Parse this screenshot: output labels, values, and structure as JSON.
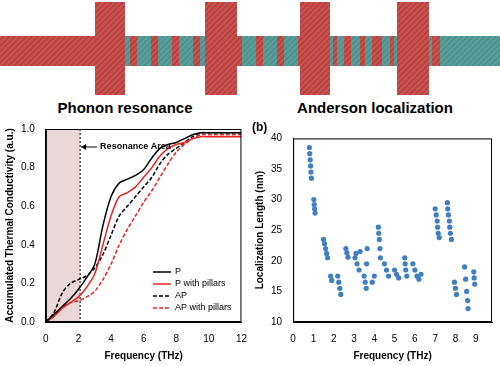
{
  "header": {
    "labels": [
      "Phonon resonance",
      "Anderson localization"
    ]
  },
  "chart_data": [
    {
      "type": "line",
      "x_label": "Frequency (THz)",
      "y_label": "Accumulated Thermal Conductivity (a.u.)",
      "x": [
        0,
        0.5,
        1,
        1.5,
        2,
        2.5,
        3,
        3.5,
        4,
        4.5,
        5,
        5.5,
        6,
        6.5,
        7,
        7.5,
        8,
        8.5,
        9,
        9.5,
        10,
        10.5,
        11,
        11.5,
        12
      ],
      "series": [
        {
          "name": "P",
          "color": "#000000",
          "line_style": "solid",
          "values": [
            0,
            0.04,
            0.08,
            0.12,
            0.17,
            0.23,
            0.3,
            0.5,
            0.65,
            0.72,
            0.74,
            0.76,
            0.79,
            0.85,
            0.9,
            0.92,
            0.93,
            0.95,
            0.97,
            0.98,
            0.98,
            0.98,
            0.98,
            0.98,
            0.98
          ]
        },
        {
          "name": "P with pillars",
          "color": "#e8231f",
          "line_style": "solid",
          "values": [
            0,
            0.03,
            0.07,
            0.1,
            0.13,
            0.18,
            0.25,
            0.4,
            0.55,
            0.65,
            0.67,
            0.7,
            0.75,
            0.8,
            0.86,
            0.9,
            0.92,
            0.93,
            0.95,
            0.96,
            0.96,
            0.96,
            0.96,
            0.96,
            0.96
          ]
        },
        {
          "name": "AP",
          "color": "#000000",
          "line_style": "dashed",
          "values": [
            0,
            0.05,
            0.15,
            0.2,
            0.22,
            0.24,
            0.28,
            0.35,
            0.45,
            0.55,
            0.6,
            0.65,
            0.7,
            0.75,
            0.82,
            0.87,
            0.9,
            0.93,
            0.96,
            0.98,
            0.98,
            0.98,
            0.98,
            0.98,
            0.98
          ]
        },
        {
          "name": "AP with pillars",
          "color": "#e8231f",
          "line_style": "dashed",
          "values": [
            0,
            0.03,
            0.08,
            0.1,
            0.11,
            0.13,
            0.16,
            0.22,
            0.3,
            0.4,
            0.48,
            0.55,
            0.62,
            0.68,
            0.75,
            0.82,
            0.88,
            0.92,
            0.95,
            0.97,
            0.97,
            0.97,
            0.97,
            0.97,
            0.97
          ]
        }
      ],
      "xlim": [
        0,
        12
      ],
      "xticks": [
        0,
        2,
        4,
        6,
        8,
        10,
        12
      ],
      "ylim": [
        0,
        1
      ],
      "yticks": [
        {
          "value": 0,
          "label": "0.0"
        },
        0.2,
        0.4,
        0.6,
        0.8,
        {
          "value": 1,
          "label": "1.0"
        }
      ],
      "annotations": [
        {
          "text": "Resonance Area",
          "x_range": [
            0,
            2.1
          ]
        }
      ],
      "legend": "lower right",
      "grid": false
    },
    {
      "type": "scatter",
      "title": "(b)",
      "x_label": "Frequency (THz)",
      "y_label": "Localization Length (nm)",
      "color": "#3f7fc2",
      "x": [
        0.8,
        0.82,
        0.84,
        0.86,
        0.88,
        0.9,
        1.02,
        1.04,
        1.06,
        1.08,
        1.5,
        1.55,
        1.6,
        1.65,
        1.7,
        1.85,
        1.9,
        2.2,
        2.25,
        2.3,
        2.35,
        2.6,
        2.65,
        2.7,
        3.05,
        3.1,
        3.15,
        3.25,
        3.3,
        3.5,
        3.55,
        3.6,
        3.62,
        3.65,
        3.9,
        4.0,
        4.2,
        4.22,
        4.25,
        4.28,
        4.3,
        4.5,
        4.6,
        4.7,
        5.0,
        5.1,
        5.2,
        5.5,
        5.52,
        5.55,
        5.6,
        5.9,
        6.0,
        6.1,
        6.2,
        6.3,
        7.0,
        7.05,
        7.1,
        7.12,
        7.15,
        7.2,
        7.6,
        7.62,
        7.65,
        7.7,
        7.72,
        7.75,
        7.8,
        7.95,
        8.0,
        8.05,
        8.45,
        8.5,
        8.55,
        8.6,
        8.62,
        8.9,
        8.92,
        8.95
      ],
      "values": [
        38.5,
        37.5,
        36.5,
        35.5,
        34.5,
        33.5,
        30,
        29.2,
        28.5,
        27.8,
        23.5,
        22.8,
        22,
        21.2,
        20.5,
        17.5,
        16.8,
        17.5,
        16.5,
        15.5,
        14.5,
        22,
        21.3,
        20.6,
        20.5,
        21.2,
        19.5,
        18.5,
        21.5,
        17.5,
        16.5,
        15.5,
        19.5,
        22,
        16.5,
        17.5,
        25.5,
        24.5,
        23.5,
        22,
        20.5,
        19.5,
        18.5,
        17.5,
        18.5,
        17.8,
        17.2,
        20.5,
        19.5,
        18.5,
        17.5,
        19.5,
        18.5,
        17.5,
        17,
        17.8,
        28.5,
        27.5,
        26.5,
        25.5,
        24.5,
        23.8,
        29.5,
        28.5,
        27.5,
        26.5,
        25.5,
        24.5,
        23.5,
        16.5,
        15.5,
        14.5,
        19,
        17,
        15,
        13.5,
        12.2,
        18.2,
        17.2,
        16.2
      ],
      "xlim": [
        0,
        9.8
      ],
      "xticks": [
        0,
        1,
        2,
        3,
        4,
        5,
        6,
        7,
        8,
        9
      ],
      "ylim": [
        10,
        40
      ],
      "yticks": [
        10,
        15,
        20,
        25,
        30,
        35,
        40
      ],
      "grid": false
    }
  ]
}
